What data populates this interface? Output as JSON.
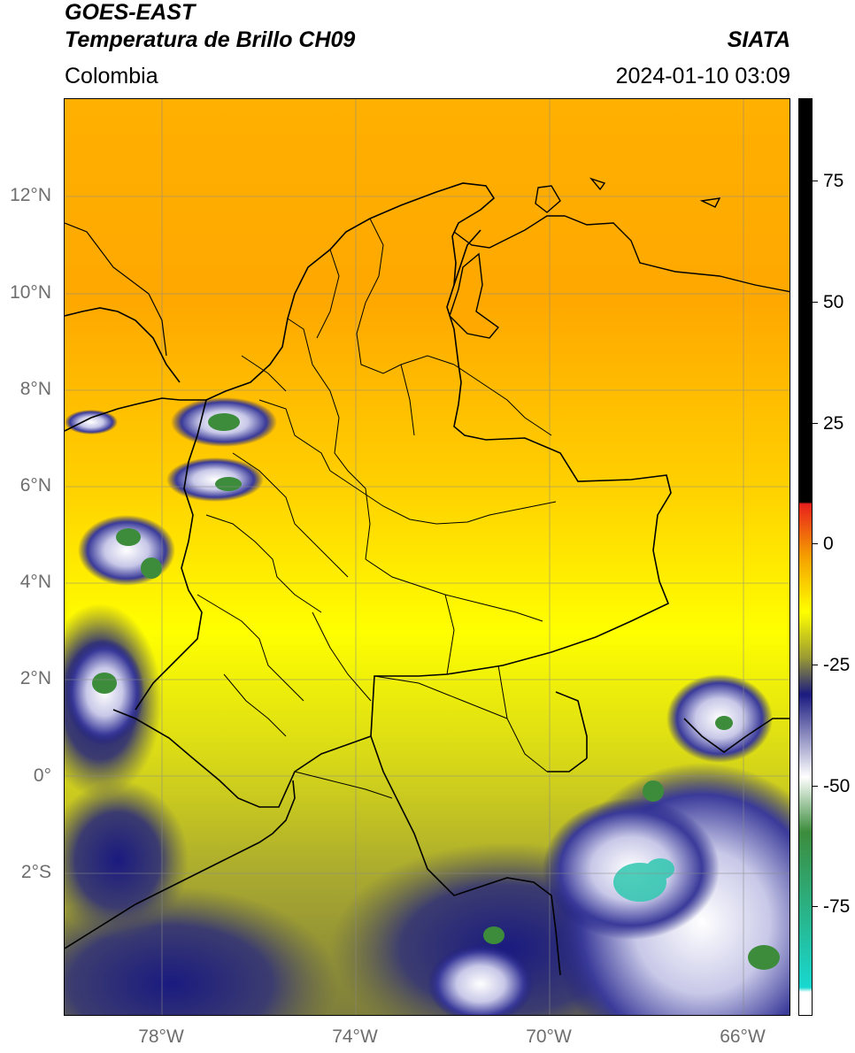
{
  "header": {
    "satellite": "GOES-EAST",
    "product": "Temperatura de Brillo CH09",
    "agency": "SIATA",
    "region": "Colombia",
    "datetime": "2024-01-10 03:09"
  },
  "map": {
    "lat_labels": [
      "12°N",
      "10°N",
      "8°N",
      "6°N",
      "4°N",
      "2°N",
      "0°",
      "2°S"
    ],
    "lon_labels": [
      "78°W",
      "74°W",
      "70°W",
      "66°W"
    ],
    "extent": {
      "lon_min": -80.0,
      "lon_max": -65.0,
      "lat_min": -5.0,
      "lat_max": 14.0
    },
    "gridlines": true
  },
  "colorbar": {
    "ticks": [
      "75",
      "50",
      "25",
      "0",
      "-25",
      "-50",
      "-75"
    ],
    "range": [
      -92,
      90
    ],
    "colors": {
      "black": "#000000",
      "red": "#e8201c",
      "orange": "#f5a000",
      "yellow": "#ffff00",
      "olive": "#9a9a34",
      "navy": "#1a1a80",
      "white": "#ffffff",
      "green": "#3c8c3c",
      "cyan": "#18d8d0"
    }
  }
}
